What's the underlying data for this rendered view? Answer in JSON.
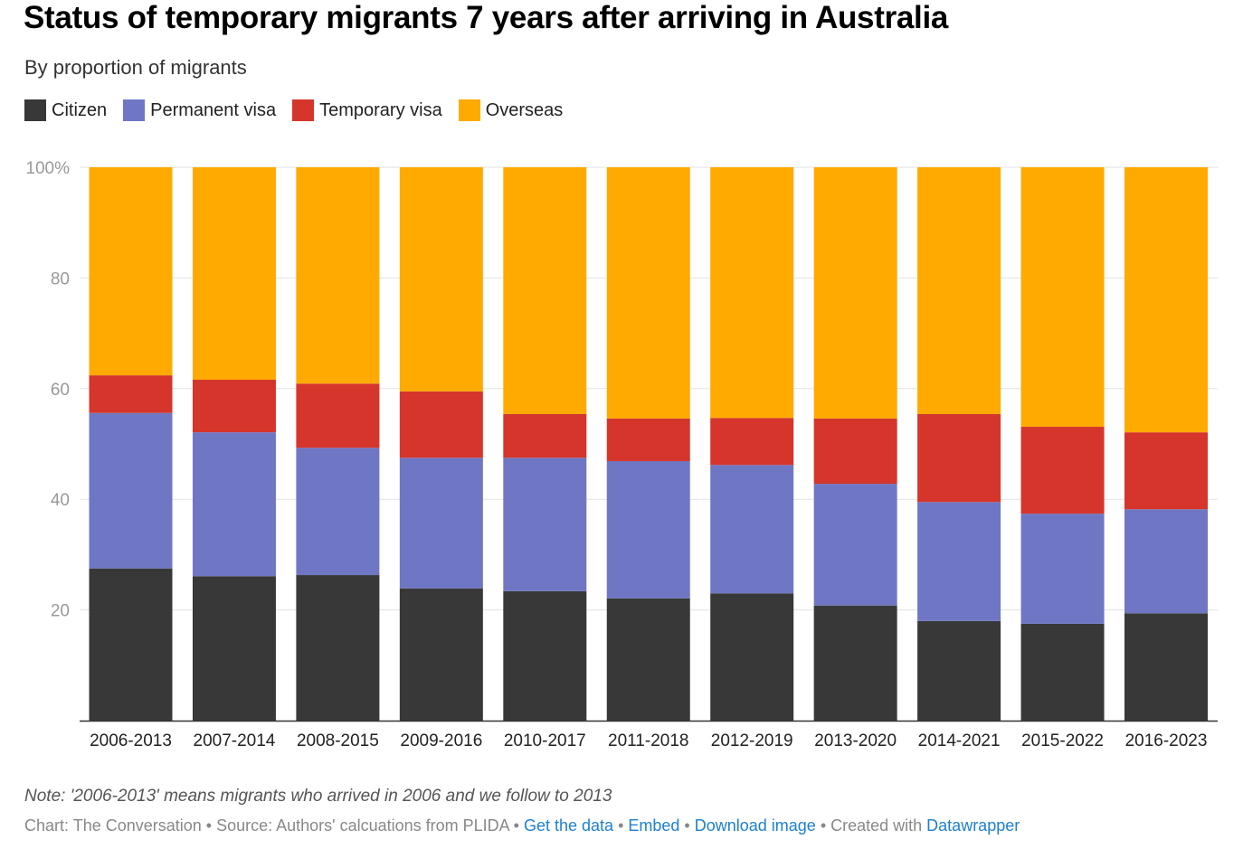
{
  "title": "Status of temporary migrants 7 years after arriving in Australia",
  "subtitle": "By proportion of migrants",
  "chart_data": {
    "type": "bar",
    "stacked": true,
    "categories": [
      "2006-2013",
      "2007-2014",
      "2008-2015",
      "2009-2016",
      "2010-2017",
      "2011-2018",
      "2012-2019",
      "2013-2020",
      "2014-2021",
      "2015-2022",
      "2016-2023"
    ],
    "series": [
      {
        "name": "Citizen",
        "color": "#383838",
        "values": [
          27.5,
          26.1,
          26.3,
          23.9,
          23.4,
          22.1,
          23.0,
          20.8,
          18.0,
          17.5,
          19.4
        ]
      },
      {
        "name": "Permanent visa",
        "color": "#6f77c5",
        "values": [
          28.1,
          26.0,
          23.0,
          23.6,
          24.1,
          24.8,
          23.2,
          22.0,
          21.5,
          19.9,
          18.8
        ]
      },
      {
        "name": "Temporary visa",
        "color": "#d6352b",
        "values": [
          6.8,
          9.5,
          11.6,
          12.0,
          7.9,
          7.7,
          8.5,
          11.8,
          15.9,
          15.7,
          13.9
        ]
      },
      {
        "name": "Overseas",
        "color": "#ffaa00",
        "values": [
          37.6,
          38.4,
          39.1,
          40.5,
          44.6,
          45.4,
          45.3,
          45.4,
          44.6,
          46.9,
          47.9
        ]
      }
    ],
    "ylim": [
      0,
      100
    ],
    "yticks": [
      20,
      40,
      60,
      80,
      100
    ],
    "ytick_labels": [
      "20",
      "40",
      "60",
      "80",
      "100%"
    ],
    "grid": true,
    "legend": "top-left"
  },
  "footer": {
    "note": "Note: '2006-2013' means migrants who arrived in 2006 and we follow to 2013",
    "credit": "Chart: The Conversation • Source: Authors' calcuations from PLIDA  • ",
    "get_data": "Get the data",
    "sep1": " • ",
    "embed": "Embed",
    "sep2": "  • ",
    "download": "Download image",
    "created": " • Created with ",
    "datawrapper": "Datawrapper"
  }
}
